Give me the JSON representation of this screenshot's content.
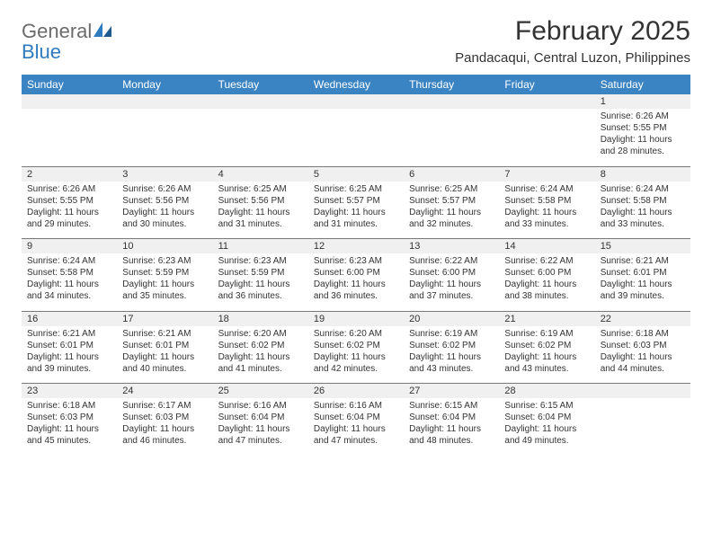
{
  "logo": {
    "general": "General",
    "blue": "Blue"
  },
  "header": {
    "title": "February 2025",
    "location": "Pandacaqui, Central Luzon, Philippines"
  },
  "colors": {
    "header_bg": "#3b84c4",
    "header_fg": "#ffffff",
    "num_row_bg": "#f0f0f0",
    "divider": "#7a7a7a",
    "text": "#333333",
    "logo_gray": "#6b6b6b",
    "logo_blue": "#2f7bbf"
  },
  "typography": {
    "title_fontsize": 30,
    "location_fontsize": 15,
    "dayheader_fontsize": 12,
    "daynum_fontsize": 11,
    "detail_fontsize": 10
  },
  "day_names": [
    "Sunday",
    "Monday",
    "Tuesday",
    "Wednesday",
    "Thursday",
    "Friday",
    "Saturday"
  ],
  "weeks": [
    {
      "nums": [
        "",
        "",
        "",
        "",
        "",
        "",
        "1"
      ],
      "details": [
        "",
        "",
        "",
        "",
        "",
        "",
        "Sunrise: 6:26 AM\nSunset: 5:55 PM\nDaylight: 11 hours and 28 minutes."
      ]
    },
    {
      "nums": [
        "2",
        "3",
        "4",
        "5",
        "6",
        "7",
        "8"
      ],
      "details": [
        "Sunrise: 6:26 AM\nSunset: 5:55 PM\nDaylight: 11 hours and 29 minutes.",
        "Sunrise: 6:26 AM\nSunset: 5:56 PM\nDaylight: 11 hours and 30 minutes.",
        "Sunrise: 6:25 AM\nSunset: 5:56 PM\nDaylight: 11 hours and 31 minutes.",
        "Sunrise: 6:25 AM\nSunset: 5:57 PM\nDaylight: 11 hours and 31 minutes.",
        "Sunrise: 6:25 AM\nSunset: 5:57 PM\nDaylight: 11 hours and 32 minutes.",
        "Sunrise: 6:24 AM\nSunset: 5:58 PM\nDaylight: 11 hours and 33 minutes.",
        "Sunrise: 6:24 AM\nSunset: 5:58 PM\nDaylight: 11 hours and 33 minutes."
      ]
    },
    {
      "nums": [
        "9",
        "10",
        "11",
        "12",
        "13",
        "14",
        "15"
      ],
      "details": [
        "Sunrise: 6:24 AM\nSunset: 5:58 PM\nDaylight: 11 hours and 34 minutes.",
        "Sunrise: 6:23 AM\nSunset: 5:59 PM\nDaylight: 11 hours and 35 minutes.",
        "Sunrise: 6:23 AM\nSunset: 5:59 PM\nDaylight: 11 hours and 36 minutes.",
        "Sunrise: 6:23 AM\nSunset: 6:00 PM\nDaylight: 11 hours and 36 minutes.",
        "Sunrise: 6:22 AM\nSunset: 6:00 PM\nDaylight: 11 hours and 37 minutes.",
        "Sunrise: 6:22 AM\nSunset: 6:00 PM\nDaylight: 11 hours and 38 minutes.",
        "Sunrise: 6:21 AM\nSunset: 6:01 PM\nDaylight: 11 hours and 39 minutes."
      ]
    },
    {
      "nums": [
        "16",
        "17",
        "18",
        "19",
        "20",
        "21",
        "22"
      ],
      "details": [
        "Sunrise: 6:21 AM\nSunset: 6:01 PM\nDaylight: 11 hours and 39 minutes.",
        "Sunrise: 6:21 AM\nSunset: 6:01 PM\nDaylight: 11 hours and 40 minutes.",
        "Sunrise: 6:20 AM\nSunset: 6:02 PM\nDaylight: 11 hours and 41 minutes.",
        "Sunrise: 6:20 AM\nSunset: 6:02 PM\nDaylight: 11 hours and 42 minutes.",
        "Sunrise: 6:19 AM\nSunset: 6:02 PM\nDaylight: 11 hours and 43 minutes.",
        "Sunrise: 6:19 AM\nSunset: 6:02 PM\nDaylight: 11 hours and 43 minutes.",
        "Sunrise: 6:18 AM\nSunset: 6:03 PM\nDaylight: 11 hours and 44 minutes."
      ]
    },
    {
      "nums": [
        "23",
        "24",
        "25",
        "26",
        "27",
        "28",
        ""
      ],
      "details": [
        "Sunrise: 6:18 AM\nSunset: 6:03 PM\nDaylight: 11 hours and 45 minutes.",
        "Sunrise: 6:17 AM\nSunset: 6:03 PM\nDaylight: 11 hours and 46 minutes.",
        "Sunrise: 6:16 AM\nSunset: 6:04 PM\nDaylight: 11 hours and 47 minutes.",
        "Sunrise: 6:16 AM\nSunset: 6:04 PM\nDaylight: 11 hours and 47 minutes.",
        "Sunrise: 6:15 AM\nSunset: 6:04 PM\nDaylight: 11 hours and 48 minutes.",
        "Sunrise: 6:15 AM\nSunset: 6:04 PM\nDaylight: 11 hours and 49 minutes.",
        ""
      ]
    }
  ]
}
